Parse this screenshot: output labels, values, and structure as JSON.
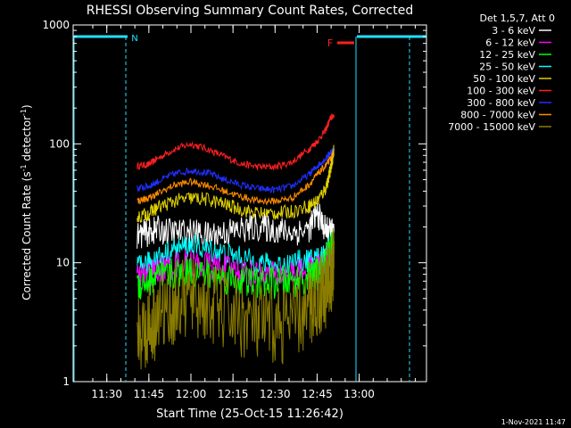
{
  "chart_data": {
    "type": "line",
    "title": "RHESSI Observing Summary Count Rates, Corrected",
    "xlabel": "Start Time (25-Oct-15 11:26:42)",
    "ylabel_main": "Corrected Count Rate (s",
    "ylabel_sup1": "-1",
    "ylabel_mid": " detector",
    "ylabel_sup2": "-1",
    "ylabel_end": ")",
    "yscale": "log",
    "ylim": [
      1,
      1000
    ],
    "xlim_minutes": [
      11.3,
      13.4
    ],
    "x_ticks": [
      {
        "t": 11.5,
        "label": "11:30"
      },
      {
        "t": 11.75,
        "label": "11:45"
      },
      {
        "t": 12.0,
        "label": "12:00"
      },
      {
        "t": 12.25,
        "label": "12:15"
      },
      {
        "t": 12.5,
        "label": "12:30"
      },
      {
        "t": 12.75,
        "label": "12:45"
      },
      {
        "t": 13.0,
        "label": "13:00"
      }
    ],
    "y_ticks": [
      {
        "v": 1,
        "label": "1"
      },
      {
        "v": 10,
        "label": "10"
      },
      {
        "v": 100,
        "label": "100"
      },
      {
        "v": 1000,
        "label": "1000"
      }
    ],
    "legend_header": "Det 1,5,7, Att 0",
    "legend_position": "right",
    "annotations": {
      "night_start_label": "N",
      "flare_label": "F",
      "timestamp": "1-Nov-2021 11:47"
    },
    "series": [
      {
        "name": "3 - 6 keV",
        "color": "#ffffff"
      },
      {
        "name": "6 - 12 keV",
        "color": "#ff00ff"
      },
      {
        "name": "12 - 25 keV",
        "color": "#00ff00"
      },
      {
        "name": "25 - 50 keV",
        "color": "#00ffff"
      },
      {
        "name": "50 - 100 keV",
        "color": "#e0d000"
      },
      {
        "name": "100 - 300 keV",
        "color": "#ff2020"
      },
      {
        "name": "300 - 800 keV",
        "color": "#2030ff"
      },
      {
        "name": "800 - 7000 keV",
        "color": "#ff8c00"
      },
      {
        "name": "7000 - 15000 keV",
        "color": "#8b7d00"
      }
    ],
    "curves": [
      {
        "series": "100 - 300 keV",
        "color": "#ff2020",
        "x": [
          11.68,
          11.75,
          11.8,
          11.9,
          12.0,
          12.1,
          12.2,
          12.3,
          12.4,
          12.5,
          12.6,
          12.7,
          12.75,
          12.8,
          12.83,
          12.85
        ],
        "y": [
          65,
          67,
          75,
          90,
          100,
          90,
          78,
          68,
          64,
          64,
          70,
          90,
          105,
          130,
          165,
          175
        ]
      },
      {
        "series": "300 - 800 keV",
        "color": "#2030ff",
        "x": [
          11.68,
          11.75,
          11.8,
          11.9,
          12.0,
          12.1,
          12.2,
          12.3,
          12.4,
          12.5,
          12.6,
          12.7,
          12.75,
          12.8,
          12.83,
          12.85
        ],
        "y": [
          42,
          44,
          48,
          56,
          60,
          57,
          50,
          45,
          42,
          41,
          44,
          55,
          65,
          75,
          85,
          90
        ]
      },
      {
        "series": "800 - 7000 keV",
        "color": "#ff8c00",
        "x": [
          11.68,
          11.75,
          11.8,
          11.9,
          12.0,
          12.1,
          12.2,
          12.3,
          12.4,
          12.5,
          12.6,
          12.7,
          12.75,
          12.8,
          12.83,
          12.85
        ],
        "y": [
          33,
          35,
          38,
          45,
          48,
          45,
          40,
          36,
          33,
          33,
          35,
          45,
          55,
          65,
          75,
          85
        ]
      },
      {
        "series": "50 - 100 keV",
        "color": "#e0d000",
        "x": [
          11.68,
          11.75,
          11.8,
          11.9,
          12.0,
          12.1,
          12.2,
          12.3,
          12.4,
          12.5,
          12.6,
          12.7,
          12.75,
          12.8,
          12.83,
          12.85
        ],
        "y": [
          24,
          26,
          29,
          33,
          35,
          34,
          31,
          28,
          26,
          26,
          27,
          30,
          33,
          42,
          60,
          90
        ]
      },
      {
        "series": "3 - 6 keV",
        "color": "#ffffff",
        "x": [
          11.68,
          11.75,
          11.8,
          11.9,
          12.0,
          12.1,
          12.2,
          12.3,
          12.4,
          12.5,
          12.6,
          12.7,
          12.75,
          12.8,
          12.83,
          12.85
        ],
        "y": [
          17,
          18,
          19,
          18,
          18,
          17,
          18,
          19,
          20,
          19,
          18,
          19,
          26,
          19,
          18,
          18
        ]
      },
      {
        "series": "25 - 50 keV",
        "color": "#00ffff",
        "x": [
          11.68,
          11.75,
          11.8,
          11.9,
          12.0,
          12.1,
          12.2,
          12.3,
          12.4,
          12.5,
          12.6,
          12.7,
          12.75,
          12.8,
          12.83,
          12.85
        ],
        "y": [
          9,
          10,
          11,
          13,
          14,
          13,
          12,
          11,
          10,
          9.5,
          10,
          10.5,
          11,
          12,
          14,
          15
        ]
      },
      {
        "series": "6 - 12 keV",
        "color": "#ff00ff",
        "x": [
          11.68,
          11.75,
          11.8,
          11.9,
          12.0,
          12.1,
          12.2,
          12.3,
          12.4,
          12.5,
          12.6,
          12.7,
          12.75,
          12.8,
          12.83,
          12.85
        ],
        "y": [
          7.5,
          8,
          8.5,
          9.5,
          10,
          9.5,
          9,
          8.5,
          8,
          7.8,
          8,
          8.5,
          9,
          10,
          11,
          12
        ]
      },
      {
        "series": "12 - 25 keV",
        "color": "#00ff00",
        "x": [
          11.68,
          11.75,
          11.8,
          11.9,
          12.0,
          12.1,
          12.2,
          12.3,
          12.4,
          12.5,
          12.6,
          12.7,
          12.75,
          12.8,
          12.83,
          12.85
        ],
        "y": [
          6.5,
          7,
          7.5,
          8,
          8.5,
          8,
          7.5,
          7,
          6.8,
          6.8,
          7,
          7.5,
          8,
          10,
          13,
          15
        ]
      },
      {
        "series": "7000 - 15000 keV",
        "color": "#8b7d00",
        "x": [
          11.68,
          11.75,
          11.8,
          11.9,
          12.0,
          12.1,
          12.2,
          12.3,
          12.4,
          12.5,
          12.6,
          12.7,
          12.75,
          12.8,
          12.83,
          12.85
        ],
        "y": [
          2.5,
          3,
          3.5,
          4.5,
          5,
          4.5,
          4,
          3.5,
          3,
          3,
          3.2,
          4,
          5,
          6,
          8,
          9
        ]
      }
    ]
  }
}
